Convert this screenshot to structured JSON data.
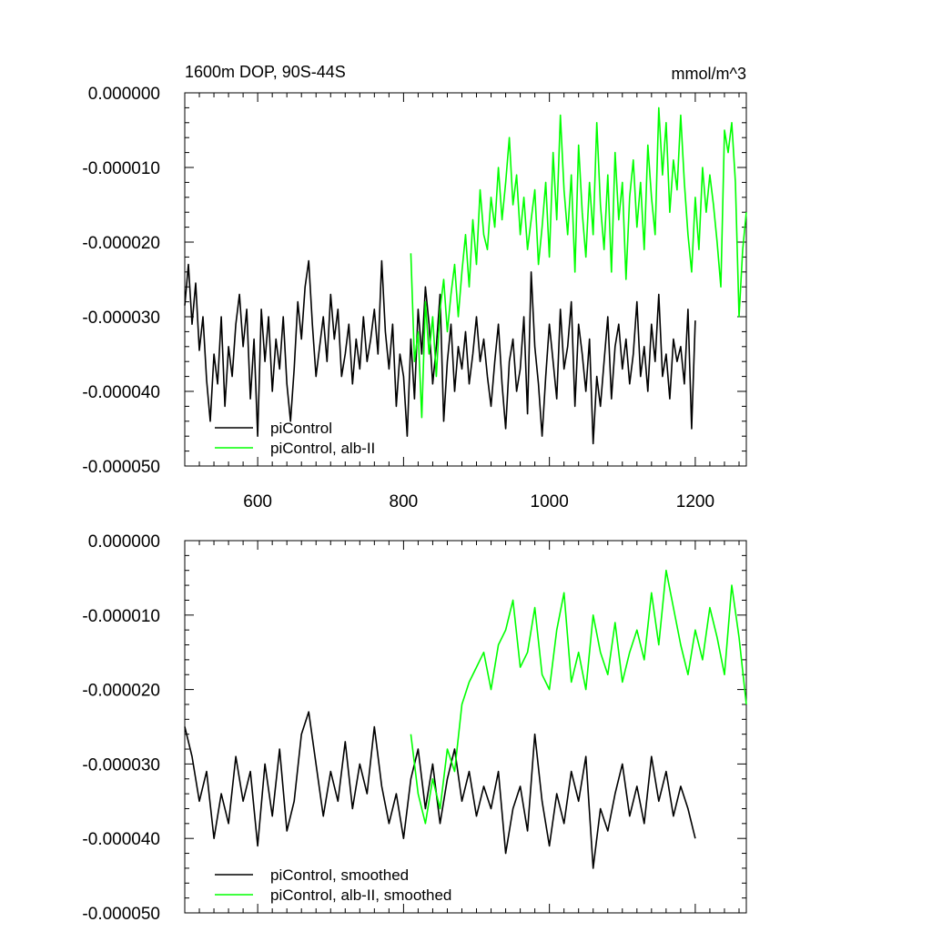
{
  "figure": {
    "title_left": "1600m DOP, 90S-44S",
    "title_right": "mmol/m^3"
  },
  "chart_data": [
    {
      "type": "line",
      "xlim": [
        500,
        1270
      ],
      "ylim": [
        -5e-05,
        0.0
      ],
      "x_ticks": [
        {
          "value": 600,
          "label": "600"
        },
        {
          "value": 800,
          "label": "800"
        },
        {
          "value": 1000,
          "label": "1000"
        },
        {
          "value": 1200,
          "label": "1200"
        }
      ],
      "y_ticks": [
        {
          "value": 0.0,
          "label": "0.000000"
        },
        {
          "value": -1e-05,
          "label": "-0.000010"
        },
        {
          "value": -2e-05,
          "label": "-0.000020"
        },
        {
          "value": -3e-05,
          "label": "-0.000030"
        },
        {
          "value": -4e-05,
          "label": "-0.000040"
        },
        {
          "value": -5e-05,
          "label": "-0.000050"
        }
      ],
      "show_x_labels": true,
      "legend_position": "bottom-left",
      "series": [
        {
          "name": "piControl",
          "color": "#000000",
          "x": [
            500,
            505,
            510,
            515,
            520,
            525,
            530,
            535,
            540,
            545,
            550,
            555,
            560,
            565,
            570,
            575,
            580,
            585,
            590,
            595,
            600,
            605,
            610,
            615,
            620,
            625,
            630,
            635,
            640,
            645,
            650,
            655,
            660,
            665,
            670,
            675,
            680,
            685,
            690,
            695,
            700,
            705,
            710,
            715,
            720,
            725,
            730,
            735,
            740,
            745,
            750,
            755,
            760,
            765,
            770,
            775,
            780,
            785,
            790,
            795,
            800,
            805,
            810,
            815,
            820,
            825,
            830,
            835,
            840,
            845,
            850,
            855,
            860,
            865,
            870,
            875,
            880,
            885,
            890,
            895,
            900,
            905,
            910,
            915,
            920,
            925,
            930,
            935,
            940,
            945,
            950,
            955,
            960,
            965,
            970,
            975,
            980,
            985,
            990,
            995,
            1000,
            1005,
            1010,
            1015,
            1020,
            1025,
            1030,
            1035,
            1040,
            1045,
            1050,
            1055,
            1060,
            1065,
            1070,
            1075,
            1080,
            1085,
            1090,
            1095,
            1100,
            1105,
            1110,
            1115,
            1120,
            1125,
            1130,
            1135,
            1140,
            1145,
            1150,
            1155,
            1160,
            1165,
            1170,
            1175,
            1180,
            1185,
            1190,
            1195,
            1200
          ],
          "y": [
            -2.85e-05,
            -2.3e-05,
            -3.1e-05,
            -2.55e-05,
            -3.45e-05,
            -3e-05,
            -3.85e-05,
            -4.4e-05,
            -3.5e-05,
            -3.9e-05,
            -3e-05,
            -4.2e-05,
            -3.4e-05,
            -3.8e-05,
            -3.1e-05,
            -2.7e-05,
            -3.4e-05,
            -2.9e-05,
            -4.1e-05,
            -3.3e-05,
            -4.6e-05,
            -2.9e-05,
            -3.6e-05,
            -3e-05,
            -4e-05,
            -3.3e-05,
            -3.7e-05,
            -3e-05,
            -3.9e-05,
            -4.4e-05,
            -3.7e-05,
            -2.8e-05,
            -3.3e-05,
            -2.6e-05,
            -2.25e-05,
            -3.1e-05,
            -3.8e-05,
            -3.4e-05,
            -3e-05,
            -3.6e-05,
            -2.7e-05,
            -3.3e-05,
            -2.9e-05,
            -3.8e-05,
            -3.5e-05,
            -3.1e-05,
            -3.9e-05,
            -3.3e-05,
            -3.7e-05,
            -3e-05,
            -3.6e-05,
            -3.3e-05,
            -2.9e-05,
            -3.5e-05,
            -2.25e-05,
            -3.2e-05,
            -3.7e-05,
            -3.1e-05,
            -4.2e-05,
            -3.5e-05,
            -3.8e-05,
            -4.6e-05,
            -3.3e-05,
            -4.1e-05,
            -2.9e-05,
            -3.5e-05,
            -2.6e-05,
            -3.1e-05,
            -3.9e-05,
            -3.4e-05,
            -2.7e-05,
            -4.4e-05,
            -3.6e-05,
            -3.1e-05,
            -4e-05,
            -3.4e-05,
            -3.7e-05,
            -3.2e-05,
            -3.9e-05,
            -3.5e-05,
            -3e-05,
            -3.6e-05,
            -3.3e-05,
            -3.8e-05,
            -4.2e-05,
            -3.6e-05,
            -3.1e-05,
            -3.9e-05,
            -4.5e-05,
            -3.6e-05,
            -3.3e-05,
            -4e-05,
            -3.7e-05,
            -3e-05,
            -4.3e-05,
            -2.4e-05,
            -3.4e-05,
            -3.9e-05,
            -4.6e-05,
            -3.8e-05,
            -3.1e-05,
            -3.6e-05,
            -4.1e-05,
            -2.9e-05,
            -3.7e-05,
            -3.4e-05,
            -2.8e-05,
            -4.2e-05,
            -3.1e-05,
            -3.5e-05,
            -4e-05,
            -3.3e-05,
            -4.7e-05,
            -3.8e-05,
            -4.2e-05,
            -3.6e-05,
            -3e-05,
            -4.1e-05,
            -3.4e-05,
            -3.1e-05,
            -3.7e-05,
            -3.3e-05,
            -3.9e-05,
            -3.5e-05,
            -2.8e-05,
            -3.8e-05,
            -3.4e-05,
            -4e-05,
            -3.1e-05,
            -3.6e-05,
            -2.7e-05,
            -3.8e-05,
            -3.5e-05,
            -4.1e-05,
            -3.3e-05,
            -3.6e-05,
            -3.4e-05,
            -3.9e-05,
            -2.9e-05,
            -4.5e-05,
            -3.05e-05
          ]
        },
        {
          "name": "piControl, alb-II",
          "color": "#00ff00",
          "x": [
            810,
            815,
            820,
            825,
            830,
            835,
            840,
            845,
            850,
            855,
            860,
            865,
            870,
            875,
            880,
            885,
            890,
            895,
            900,
            905,
            910,
            915,
            920,
            925,
            930,
            935,
            940,
            945,
            950,
            955,
            960,
            965,
            970,
            975,
            980,
            985,
            990,
            995,
            1000,
            1005,
            1010,
            1015,
            1020,
            1025,
            1030,
            1035,
            1040,
            1045,
            1050,
            1055,
            1060,
            1065,
            1070,
            1075,
            1080,
            1085,
            1090,
            1095,
            1100,
            1105,
            1110,
            1115,
            1120,
            1125,
            1130,
            1135,
            1140,
            1145,
            1150,
            1155,
            1160,
            1165,
            1170,
            1175,
            1180,
            1185,
            1190,
            1195,
            1200,
            1205,
            1210,
            1215,
            1220,
            1225,
            1230,
            1235,
            1240,
            1245,
            1250,
            1255,
            1260,
            1265,
            1270
          ],
          "y": [
            -2.15e-05,
            -3.6e-05,
            -3.2e-05,
            -4.35e-05,
            -2.8e-05,
            -3.5e-05,
            -3e-05,
            -3.8e-05,
            -2.9e-05,
            -2.5e-05,
            -3.2e-05,
            -2.7e-05,
            -2.3e-05,
            -3e-05,
            -2.4e-05,
            -1.9e-05,
            -2.6e-05,
            -1.7e-05,
            -2.3e-05,
            -1.3e-05,
            -1.9e-05,
            -2.1e-05,
            -1.4e-05,
            -1.8e-05,
            -1e-05,
            -1.7e-05,
            -1.2e-05,
            -6e-06,
            -1.5e-05,
            -1.1e-05,
            -1.9e-05,
            -1.4e-05,
            -2.1e-05,
            -1.7e-05,
            -1.3e-05,
            -2.3e-05,
            -1.8e-05,
            -1.2e-05,
            -2.2e-05,
            -8e-06,
            -1.7e-05,
            -3e-06,
            -1.3e-05,
            -1.9e-05,
            -1.1e-05,
            -2.4e-05,
            -7e-06,
            -1.6e-05,
            -2.2e-05,
            -1.2e-05,
            -1.9e-05,
            -4e-06,
            -1.5e-05,
            -2.1e-05,
            -1.1e-05,
            -2.4e-05,
            -8e-06,
            -1.7e-05,
            -1.2e-05,
            -2.5e-05,
            -1.4e-05,
            -9e-06,
            -1.8e-05,
            -1.2e-05,
            -2.1e-05,
            -7e-06,
            -1.4e-05,
            -1.9e-05,
            -2e-06,
            -1.1e-05,
            -4e-06,
            -1.6e-05,
            -9e-06,
            -1.3e-05,
            -3e-06,
            -1.2e-05,
            -1.9e-05,
            -2.4e-05,
            -1.4e-05,
            -2.1e-05,
            -1e-05,
            -1.6e-05,
            -1.1e-05,
            -1.5e-05,
            -2e-05,
            -2.6e-05,
            -5e-06,
            -8e-06,
            -4e-06,
            -1.2e-05,
            -3e-05,
            -2.1e-05,
            -1.6e-05
          ]
        }
      ]
    },
    {
      "type": "line",
      "xlim": [
        500,
        1270
      ],
      "ylim": [
        -5e-05,
        0.0
      ],
      "x_ticks": [
        {
          "value": 600,
          "label": "600"
        },
        {
          "value": 800,
          "label": "800"
        },
        {
          "value": 1000,
          "label": "1000"
        },
        {
          "value": 1200,
          "label": "1200"
        }
      ],
      "y_ticks": [
        {
          "value": 0.0,
          "label": "0.000000"
        },
        {
          "value": -1e-05,
          "label": "-0.000010"
        },
        {
          "value": -2e-05,
          "label": "-0.000020"
        },
        {
          "value": -3e-05,
          "label": "-0.000030"
        },
        {
          "value": -4e-05,
          "label": "-0.000040"
        },
        {
          "value": -5e-05,
          "label": "-0.000050"
        }
      ],
      "show_x_labels": false,
      "legend_position": "bottom-left",
      "series": [
        {
          "name": "piControl, smoothed",
          "color": "#000000",
          "x": [
            500,
            510,
            520,
            530,
            540,
            550,
            560,
            570,
            580,
            590,
            600,
            610,
            620,
            630,
            640,
            650,
            660,
            670,
            680,
            690,
            700,
            710,
            720,
            730,
            740,
            750,
            760,
            770,
            780,
            790,
            800,
            810,
            820,
            830,
            840,
            850,
            860,
            870,
            880,
            890,
            900,
            910,
            920,
            930,
            940,
            950,
            960,
            970,
            980,
            990,
            1000,
            1010,
            1020,
            1030,
            1040,
            1050,
            1060,
            1070,
            1080,
            1090,
            1100,
            1110,
            1120,
            1130,
            1140,
            1150,
            1160,
            1170,
            1180,
            1190,
            1200
          ],
          "y": [
            -2.5e-05,
            -2.9e-05,
            -3.5e-05,
            -3.1e-05,
            -4e-05,
            -3.4e-05,
            -3.8e-05,
            -2.9e-05,
            -3.5e-05,
            -3.1e-05,
            -4.1e-05,
            -3e-05,
            -3.7e-05,
            -2.8e-05,
            -3.9e-05,
            -3.5e-05,
            -2.6e-05,
            -2.3e-05,
            -3e-05,
            -3.7e-05,
            -3.1e-05,
            -3.5e-05,
            -2.7e-05,
            -3.6e-05,
            -3e-05,
            -3.4e-05,
            -2.5e-05,
            -3.3e-05,
            -3.8e-05,
            -3.4e-05,
            -4e-05,
            -3.2e-05,
            -2.8e-05,
            -3.6e-05,
            -3e-05,
            -3.8e-05,
            -3.2e-05,
            -2.8e-05,
            -3.5e-05,
            -3.1e-05,
            -3.7e-05,
            -3.3e-05,
            -3.6e-05,
            -3.1e-05,
            -4.2e-05,
            -3.6e-05,
            -3.3e-05,
            -3.9e-05,
            -2.6e-05,
            -3.5e-05,
            -4.1e-05,
            -3.4e-05,
            -3.8e-05,
            -3.1e-05,
            -3.5e-05,
            -2.9e-05,
            -4.4e-05,
            -3.6e-05,
            -3.9e-05,
            -3.4e-05,
            -3e-05,
            -3.7e-05,
            -3.3e-05,
            -3.8e-05,
            -2.9e-05,
            -3.5e-05,
            -3.1e-05,
            -3.7e-05,
            -3.3e-05,
            -3.6e-05,
            -4e-05
          ]
        },
        {
          "name": "piControl, alb-II, smoothed",
          "color": "#00ff00",
          "x": [
            810,
            820,
            830,
            840,
            850,
            860,
            870,
            880,
            890,
            900,
            910,
            920,
            930,
            940,
            950,
            960,
            970,
            980,
            990,
            1000,
            1010,
            1020,
            1030,
            1040,
            1050,
            1060,
            1070,
            1080,
            1090,
            1100,
            1110,
            1120,
            1130,
            1140,
            1150,
            1160,
            1170,
            1180,
            1190,
            1200,
            1210,
            1220,
            1230,
            1240,
            1250,
            1260,
            1270
          ],
          "y": [
            -2.6e-05,
            -3.4e-05,
            -3.8e-05,
            -3.2e-05,
            -3.6e-05,
            -2.8e-05,
            -3.1e-05,
            -2.2e-05,
            -1.9e-05,
            -1.7e-05,
            -1.5e-05,
            -2e-05,
            -1.4e-05,
            -1.2e-05,
            -8e-06,
            -1.7e-05,
            -1.5e-05,
            -9e-06,
            -1.8e-05,
            -2e-05,
            -1.2e-05,
            -7e-06,
            -1.9e-05,
            -1.5e-05,
            -2e-05,
            -1e-05,
            -1.5e-05,
            -1.8e-05,
            -1.1e-05,
            -1.9e-05,
            -1.5e-05,
            -1.2e-05,
            -1.6e-05,
            -7e-06,
            -1.4e-05,
            -4e-06,
            -9e-06,
            -1.4e-05,
            -1.8e-05,
            -1.2e-05,
            -1.6e-05,
            -9e-06,
            -1.3e-05,
            -1.8e-05,
            -6e-06,
            -1.3e-05,
            -2.2e-05
          ]
        }
      ]
    }
  ]
}
